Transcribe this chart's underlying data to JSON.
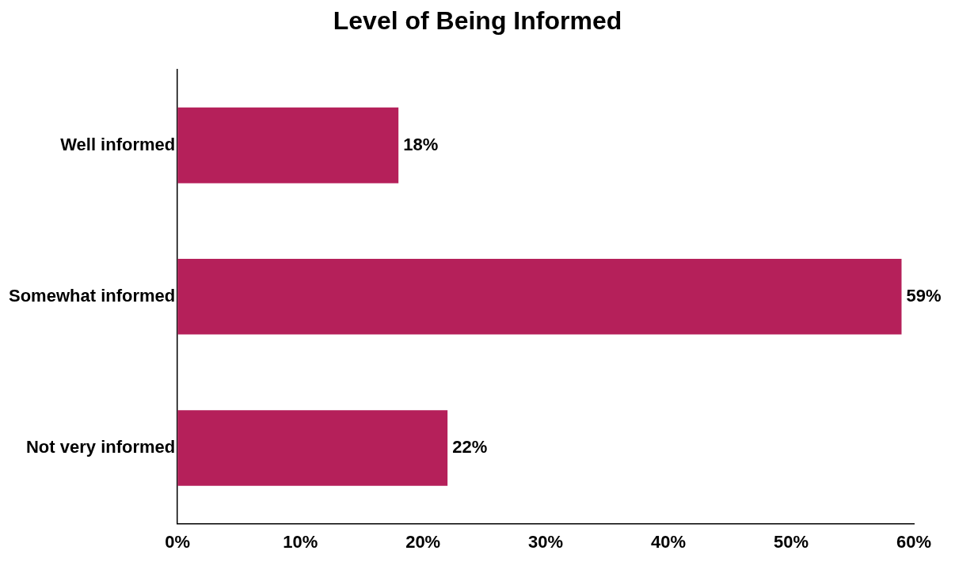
{
  "chart_data": {
    "type": "bar",
    "orientation": "horizontal",
    "title": "Level of Being Informed",
    "categories": [
      "Well informed",
      "Somewhat informed",
      "Not very informed"
    ],
    "values": [
      18,
      59,
      22
    ],
    "color": "#b5205a",
    "value_labels": [
      "18%",
      "59%",
      "22%"
    ],
    "xlim": [
      0,
      60
    ],
    "xticks": [
      {
        "value": 0,
        "label": "0%"
      },
      {
        "value": 10,
        "label": "10%"
      },
      {
        "value": 20,
        "label": "20%"
      },
      {
        "value": 30,
        "label": "30%"
      },
      {
        "value": 40,
        "label": "40%"
      },
      {
        "value": 50,
        "label": "50%"
      },
      {
        "value": 60,
        "label": "60%"
      }
    ],
    "grid": false,
    "legend": false
  }
}
